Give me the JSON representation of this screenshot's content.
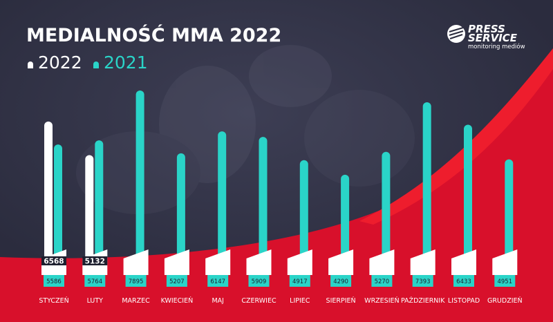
{
  "title": "MEDIALNOŚĆ MMA 2022",
  "logo": {
    "line1": "PRESS",
    "line2": "SERVICE",
    "tagline": "monitoring mediów"
  },
  "colors": {
    "background": "#2b2c3e",
    "red": "#d8102b",
    "red_bright": "#ee1d2d",
    "series_2022": "#ffffff",
    "series_2021": "#2ad4c8",
    "label_box": "#ffffff"
  },
  "chart_data": {
    "type": "bar",
    "title": "MEDIALNOŚĆ MMA 2022",
    "legend_position": "top-left",
    "grid": false,
    "categories": [
      "STYCZEŃ",
      "LUTY",
      "MARZEC",
      "KWIECIEŃ",
      "MAJ",
      "CZERWIEC",
      "LIPIEC",
      "SIERPIEŃ",
      "WRZESIEŃ",
      "PAŹDZIERNIK",
      "LISTOPAD",
      "GRUDZIEŃ"
    ],
    "ylim": [
      0,
      8000
    ],
    "series": [
      {
        "name": "2022",
        "color": "#ffffff",
        "values": [
          6568,
          5132,
          null,
          null,
          null,
          null,
          null,
          null,
          null,
          null,
          null,
          null
        ]
      },
      {
        "name": "2021",
        "color": "#2ad4c8",
        "values": [
          5586,
          5764,
          7895,
          5207,
          6147,
          5909,
          4917,
          4290,
          5270,
          7393,
          6433,
          4951
        ]
      }
    ]
  }
}
